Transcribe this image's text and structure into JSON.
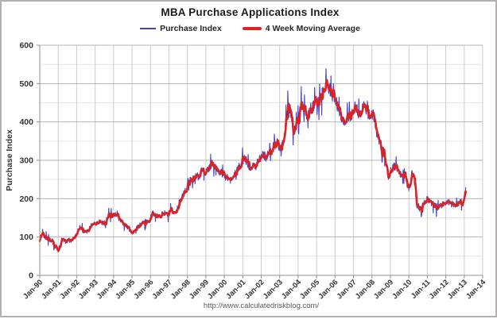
{
  "title": "MBA Purchase Applications Index",
  "legend": [
    {
      "label": "Purchase Index",
      "color": "#4040cc"
    },
    {
      "label": "4 Week Moving Average",
      "color": "#dd2222"
    }
  ],
  "footer_url": "http://www.calculatedriskblog.com/",
  "chart_data": {
    "type": "line",
    "title": "MBA Purchase Applications Index",
    "xlabel": "",
    "ylabel": "Purchase Index",
    "ylim": [
      0,
      600
    ],
    "y_ticks": [
      0,
      100,
      200,
      300,
      400,
      500,
      600
    ],
    "y_minor_step": 50,
    "grid": true,
    "legend_position": "top",
    "x_tick_labels": [
      "Jan-90",
      "Jan-91",
      "Jan-92",
      "Jan-93",
      "Jan-94",
      "Jan-95",
      "Jan-96",
      "Jan-97",
      "Jan-98",
      "Jan-99",
      "Jan-00",
      "Jan-01",
      "Jan-02",
      "Jan-03",
      "Jan-04",
      "Jan-05",
      "Jan-06",
      "Jan-07",
      "Jan-08",
      "Jan-09",
      "Jan-10",
      "Jan-11",
      "Jan-12",
      "Jan-13",
      "Jan-14"
    ],
    "x_range_years": [
      1990,
      2014
    ],
    "series": [
      {
        "name": "Purchase Index",
        "color": "#4040cc",
        "style": "thin weekly line, volatile around moving average"
      },
      {
        "name": "4 Week Moving Average",
        "color": "#dd2222",
        "style": "thick line, 4-week moving average of Purchase Index"
      }
    ],
    "monthly_values_note": "Approximate 4-week-moving-average level by month, Jan-1990 through Feb-2013, read from chart",
    "monthly_start": "1990-01",
    "monthly_end": "2013-02",
    "monthly_values": [
      100,
      103,
      104,
      101,
      98,
      96,
      94,
      92,
      89,
      84,
      78,
      71,
      65,
      72,
      88,
      93,
      90,
      88,
      90,
      92,
      90,
      93,
      96,
      101,
      109,
      120,
      126,
      122,
      117,
      114,
      112,
      115,
      121,
      128,
      134,
      138,
      135,
      137,
      140,
      142,
      138,
      136,
      139,
      143,
      148,
      155,
      158,
      152,
      156,
      161,
      158,
      152,
      147,
      142,
      138,
      134,
      130,
      126,
      122,
      117,
      112,
      115,
      118,
      122,
      126,
      130,
      134,
      138,
      140,
      142,
      145,
      141,
      149,
      158,
      163,
      158,
      155,
      152,
      155,
      158,
      160,
      162,
      161,
      158,
      161,
      164,
      166,
      163,
      165,
      170,
      178,
      188,
      198,
      208,
      216,
      222,
      234,
      242,
      248,
      252,
      255,
      258,
      261,
      257,
      263,
      272,
      278,
      271,
      269,
      274,
      280,
      285,
      292,
      290,
      284,
      279,
      274,
      270,
      268,
      264,
      261,
      257,
      254,
      250,
      248,
      252,
      258,
      264,
      271,
      278,
      285,
      291,
      300,
      306,
      301,
      293,
      287,
      283,
      287,
      292,
      275,
      293,
      303,
      306,
      311,
      319,
      313,
      308,
      312,
      318,
      324,
      330,
      336,
      341,
      346,
      341,
      337,
      334,
      346,
      362,
      396,
      428,
      442,
      430,
      405,
      385,
      380,
      389,
      406,
      430,
      446,
      441,
      428,
      420,
      416,
      420,
      426,
      433,
      441,
      447,
      451,
      456,
      461,
      468,
      476,
      489,
      496,
      498,
      491,
      480,
      471,
      466,
      459,
      449,
      438,
      427,
      417,
      408,
      402,
      400,
      405,
      410,
      416,
      423,
      433,
      441,
      435,
      425,
      420,
      429,
      439,
      446,
      435,
      428,
      420,
      411,
      416,
      421,
      398,
      375,
      360,
      346,
      338,
      330,
      315,
      295,
      268,
      257,
      270,
      277,
      282,
      284,
      278,
      270,
      264,
      262,
      268,
      271,
      256,
      233,
      228,
      241,
      253,
      262,
      230,
      186,
      172,
      175,
      180,
      185,
      188,
      192,
      201,
      195,
      192,
      188,
      184,
      181,
      180,
      178,
      183,
      180,
      186,
      183,
      188,
      192,
      190,
      186,
      183,
      186,
      184,
      182,
      186,
      190,
      193,
      190,
      203,
      226
    ]
  }
}
